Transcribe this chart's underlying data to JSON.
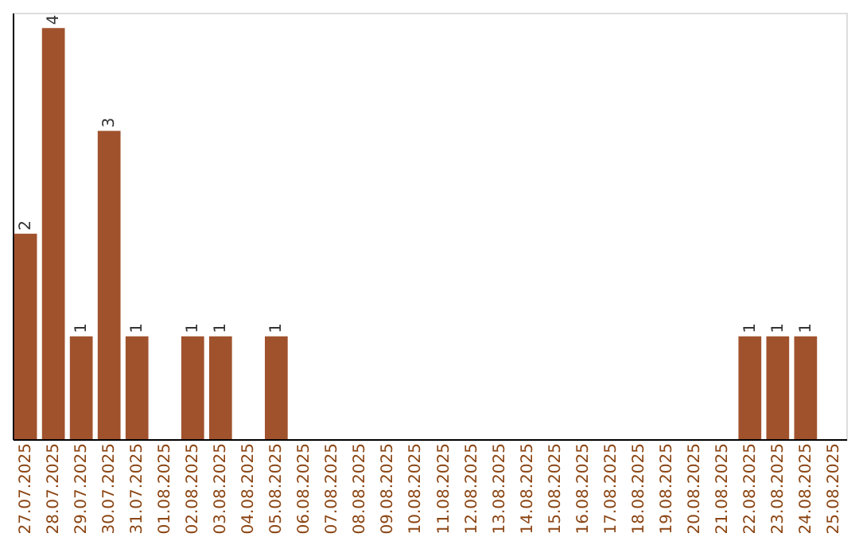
{
  "chart_data": {
    "type": "bar",
    "categories": [
      "27.07.2025",
      "28.07.2025",
      "29.07.2025",
      "30.07.2025",
      "31.07.2025",
      "01.08.2025",
      "02.08.2025",
      "03.08.2025",
      "04.08.2025",
      "05.08.2025",
      "06.08.2025",
      "07.08.2025",
      "08.08.2025",
      "09.08.2025",
      "10.08.2025",
      "11.08.2025",
      "12.08.2025",
      "13.08.2025",
      "14.08.2025",
      "15.08.2025",
      "16.08.2025",
      "17.08.2025",
      "18.08.2025",
      "19.08.2025",
      "20.08.2025",
      "21.08.2025",
      "22.08.2025",
      "23.08.2025",
      "24.08.2025",
      "25.08.2025"
    ],
    "values": [
      2,
      4,
      1,
      3,
      1,
      0,
      1,
      1,
      0,
      1,
      0,
      0,
      0,
      0,
      0,
      0,
      0,
      0,
      0,
      0,
      0,
      0,
      0,
      0,
      0,
      0,
      1,
      1,
      1,
      0
    ],
    "value_labels": [
      "2",
      "4",
      "1",
      "3",
      "1",
      null,
      "1",
      "1",
      null,
      "1",
      null,
      null,
      null,
      null,
      null,
      null,
      null,
      null,
      null,
      null,
      null,
      null,
      null,
      null,
      null,
      null,
      "1",
      "1",
      "1",
      null
    ],
    "color": "#a0522d",
    "ylim": [
      0,
      4.15
    ],
    "grid": false
  }
}
